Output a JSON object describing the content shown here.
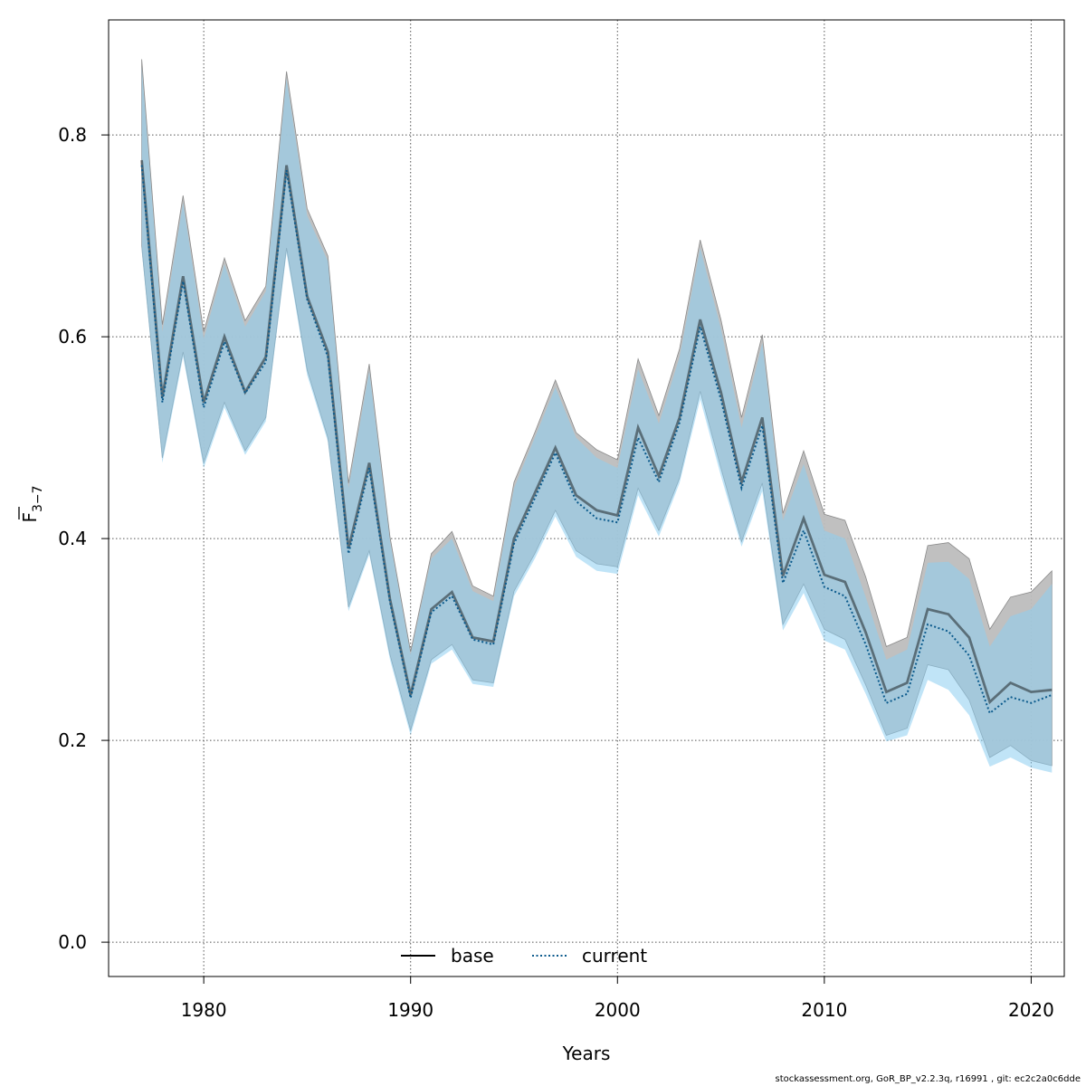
{
  "chart_data": {
    "type": "line",
    "title": "",
    "xlabel": "Years",
    "ylabel_main": "F",
    "ylabel_sub": "3−7",
    "xlim": [
      1975.4,
      2021.6
    ],
    "ylim": [
      -0.034,
      0.914
    ],
    "xticks": [
      1980,
      1990,
      2000,
      2010,
      2020
    ],
    "yticks": [
      0.0,
      0.2,
      0.4,
      0.6,
      0.8
    ],
    "ytick_labels": [
      "0.0",
      "0.2",
      "0.4",
      "0.6",
      "0.8"
    ],
    "grid": true,
    "legend_position": "bottom-center",
    "x": [
      1977,
      1978,
      1979,
      1980,
      1981,
      1982,
      1983,
      1984,
      1985,
      1986,
      1987,
      1988,
      1989,
      1990,
      1991,
      1992,
      1993,
      1994,
      1995,
      1996,
      1997,
      1998,
      1999,
      2000,
      2001,
      2002,
      2003,
      2004,
      2005,
      2006,
      2007,
      2008,
      2009,
      2010,
      2011,
      2012,
      2013,
      2014,
      2015,
      2016,
      2017,
      2018,
      2019,
      2020,
      2021
    ],
    "series": [
      {
        "name": "base",
        "style": "solid",
        "color": "#000000",
        "band_color": "#bdbdbd",
        "values": [
          0.775,
          0.54,
          0.66,
          0.535,
          0.6,
          0.545,
          0.58,
          0.77,
          0.64,
          0.585,
          0.39,
          0.475,
          0.34,
          0.245,
          0.33,
          0.347,
          0.302,
          0.298,
          0.4,
          0.445,
          0.49,
          0.443,
          0.428,
          0.423,
          0.51,
          0.462,
          0.52,
          0.617,
          0.545,
          0.456,
          0.52,
          0.363,
          0.42,
          0.364,
          0.357,
          0.307,
          0.248,
          0.257,
          0.33,
          0.325,
          0.302,
          0.238,
          0.257,
          0.248,
          0.25
        ],
        "lower": [
          0.69,
          0.48,
          0.585,
          0.475,
          0.535,
          0.487,
          0.52,
          0.688,
          0.567,
          0.5,
          0.332,
          0.388,
          0.285,
          0.21,
          0.28,
          0.295,
          0.26,
          0.257,
          0.348,
          0.385,
          0.428,
          0.388,
          0.375,
          0.372,
          0.45,
          0.408,
          0.46,
          0.546,
          0.47,
          0.397,
          0.455,
          0.315,
          0.355,
          0.31,
          0.3,
          0.255,
          0.205,
          0.212,
          0.275,
          0.27,
          0.24,
          0.183,
          0.195,
          0.18,
          0.175
        ],
        "upper": [
          0.875,
          0.612,
          0.74,
          0.605,
          0.678,
          0.616,
          0.65,
          0.863,
          0.727,
          0.68,
          0.455,
          0.573,
          0.402,
          0.288,
          0.385,
          0.407,
          0.353,
          0.343,
          0.456,
          0.505,
          0.557,
          0.505,
          0.488,
          0.478,
          0.578,
          0.522,
          0.588,
          0.696,
          0.617,
          0.52,
          0.602,
          0.425,
          0.487,
          0.424,
          0.418,
          0.362,
          0.293,
          0.302,
          0.393,
          0.396,
          0.38,
          0.31,
          0.342,
          0.347,
          0.368
        ]
      },
      {
        "name": "current",
        "style": "dotted",
        "color": "#0b5a8c",
        "band_color": "#8dcdf0",
        "values": [
          0.77,
          0.535,
          0.655,
          0.53,
          0.595,
          0.544,
          0.575,
          0.765,
          0.637,
          0.58,
          0.385,
          0.47,
          0.337,
          0.242,
          0.327,
          0.343,
          0.3,
          0.295,
          0.395,
          0.44,
          0.485,
          0.437,
          0.42,
          0.416,
          0.5,
          0.456,
          0.515,
          0.61,
          0.538,
          0.45,
          0.512,
          0.356,
          0.408,
          0.352,
          0.343,
          0.295,
          0.237,
          0.246,
          0.315,
          0.308,
          0.284,
          0.227,
          0.243,
          0.237,
          0.245
        ],
        "lower": [
          0.685,
          0.475,
          0.58,
          0.47,
          0.53,
          0.483,
          0.516,
          0.683,
          0.562,
          0.496,
          0.328,
          0.384,
          0.28,
          0.205,
          0.276,
          0.29,
          0.256,
          0.253,
          0.343,
          0.38,
          0.422,
          0.382,
          0.368,
          0.365,
          0.443,
          0.402,
          0.455,
          0.538,
          0.462,
          0.392,
          0.447,
          0.309,
          0.346,
          0.299,
          0.29,
          0.246,
          0.199,
          0.205,
          0.26,
          0.25,
          0.225,
          0.174,
          0.183,
          0.173,
          0.168
        ],
        "upper": [
          0.868,
          0.605,
          0.733,
          0.598,
          0.672,
          0.61,
          0.645,
          0.856,
          0.72,
          0.675,
          0.45,
          0.566,
          0.398,
          0.285,
          0.38,
          0.4,
          0.348,
          0.338,
          0.45,
          0.5,
          0.55,
          0.5,
          0.48,
          0.47,
          0.568,
          0.514,
          0.58,
          0.688,
          0.608,
          0.51,
          0.594,
          0.418,
          0.474,
          0.408,
          0.4,
          0.342,
          0.28,
          0.29,
          0.376,
          0.377,
          0.36,
          0.293,
          0.323,
          0.33,
          0.355
        ]
      }
    ]
  },
  "footer": {
    "credit": "stockassessment.org, GoR_BP_v2.2.3q, r16991 , git: ec2c2a0c6dde"
  }
}
